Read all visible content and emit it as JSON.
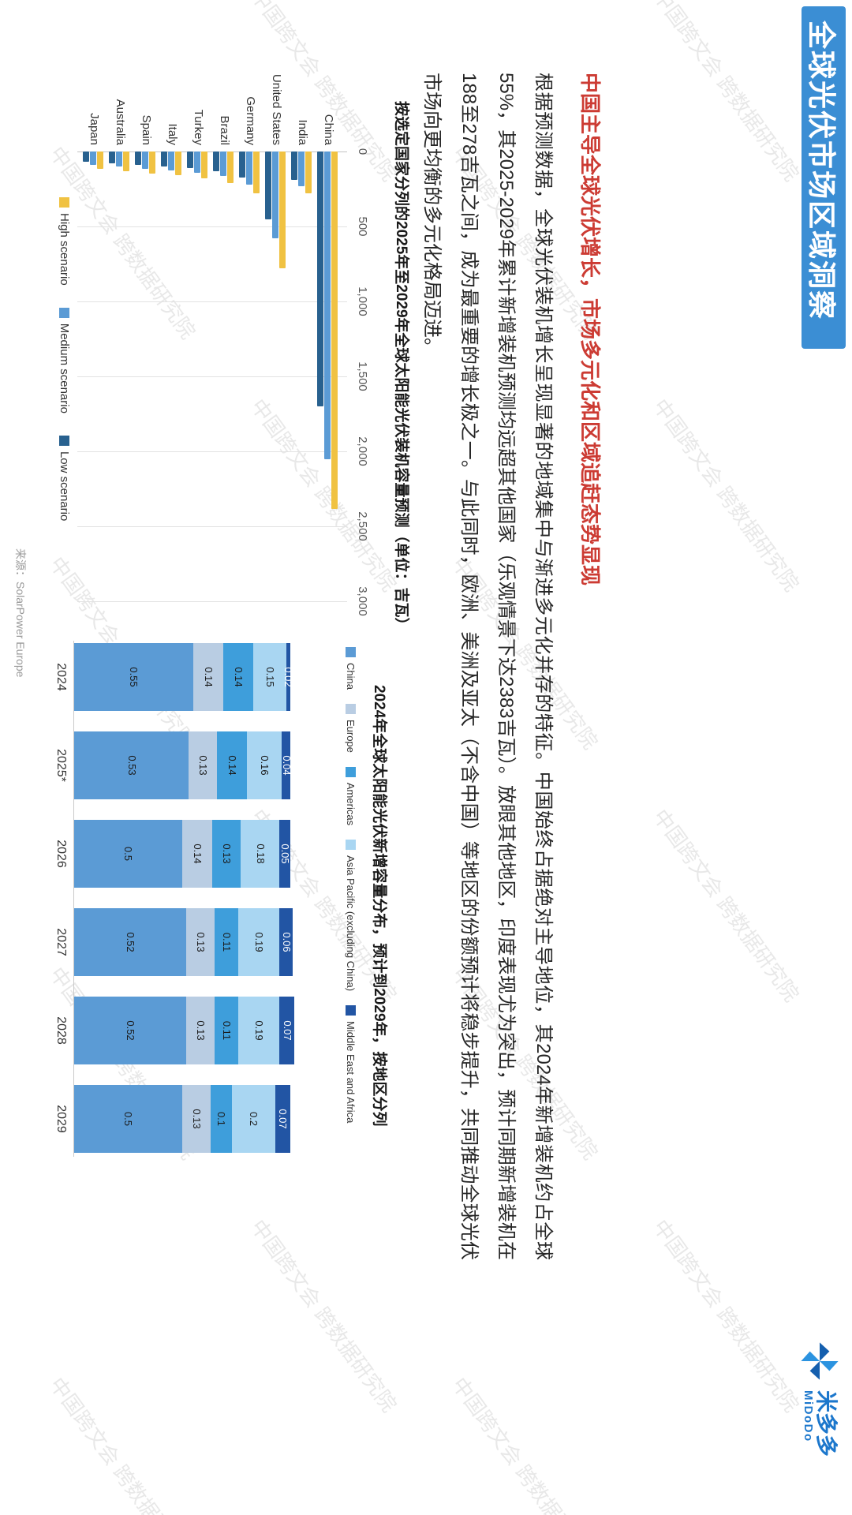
{
  "banner": {
    "title": "全球光伏市场区域洞察",
    "bg": "#3b8ed4"
  },
  "logo": {
    "zh": "米多多",
    "en": "MiDoDo",
    "color": "#1c77cc"
  },
  "heading": {
    "text": "中国主导全球光伏增长，市场多元化和区域追赶态势显现",
    "color": "#cc3b33"
  },
  "body_text": "根据预测数据，全球光伏装机增长呈现显著的地域集中与渐进多元化并存的特征。中国始终占据绝对主导地位，其2024年新增装机约占全球55%，其2025-2029年累计新增装机预测均远超其他国家（乐观情景下达2383吉瓦）。放眼其他地区，印度表现尤为突出，预计同期新增装机在188至278吉瓦之间，成为最重要的增长极之一。与此同时，欧洲、美洲及亚太（不含中国）等地区的份额预计将稳步提升，共同推动全球光伏市场向更均衡的多元化格局迈进。",
  "source": "来源：SolarPower Europe",
  "watermark": "中国跨文会 跨数据研究院",
  "chart_data": [
    {
      "type": "bar",
      "orientation": "horizontal",
      "title": "按选定国家分列的2025年至2029年全球太阳能光伏装机容量预测（单位：吉瓦）",
      "categories": [
        "China",
        "India",
        "United States",
        "Germany",
        "Brazil",
        "Turkey",
        "Italy",
        "Spain",
        "Australia",
        "Japan"
      ],
      "series": [
        {
          "name": "High scenario",
          "color": "#f0c242",
          "values": [
            2383,
            278,
            780,
            280,
            210,
            180,
            160,
            145,
            130,
            115
          ]
        },
        {
          "name": "Medium scenario",
          "color": "#5b9bd5",
          "values": [
            2050,
            230,
            580,
            220,
            165,
            140,
            125,
            115,
            100,
            90
          ]
        },
        {
          "name": "Low scenario",
          "color": "#28618f",
          "values": [
            1700,
            188,
            450,
            175,
            130,
            110,
            100,
            90,
            80,
            70
          ]
        }
      ],
      "xlim": [
        0,
        3000
      ],
      "ticks": [
        0,
        500,
        1000,
        1500,
        2000,
        2500,
        3000
      ],
      "tick_labels": [
        "0",
        "500",
        "1,000",
        "1,500",
        "2,000",
        "2,500",
        "3,000"
      ],
      "grid": true,
      "legend_position": "bottom",
      "note": "values are cumulative 2025-2029 additions in GW, estimated from bar lengths; China high scenario 2383 GW and India range 188-278 GW confirmed in body text"
    },
    {
      "type": "bar",
      "subtype": "stacked-column",
      "title": "2024年全球太阳能光伏新增容量分布，预计到2029年，按地区分列",
      "categories": [
        "2024",
        "2025*",
        "2026",
        "2027",
        "2028",
        "2029"
      ],
      "series": [
        {
          "name": "China",
          "color": "#5b9bd5",
          "values": [
            0.55,
            0.53,
            0.5,
            0.52,
            0.52,
            0.5
          ]
        },
        {
          "name": "Europe",
          "color": "#b9cde3",
          "values": [
            0.14,
            0.13,
            0.14,
            0.13,
            0.13,
            0.13
          ]
        },
        {
          "name": "Americas",
          "color": "#3e9edb",
          "values": [
            0.14,
            0.14,
            0.13,
            0.11,
            0.11,
            0.1
          ]
        },
        {
          "name": "Asia Pacific (excluding China)",
          "color": "#a9d6f2",
          "values": [
            0.15,
            0.16,
            0.18,
            0.19,
            0.19,
            0.2
          ]
        },
        {
          "name": "Middle East and Africa",
          "color": "#2255a4",
          "values": [
            0.02,
            0.04,
            0.05,
            0.06,
            0.07,
            0.07
          ]
        }
      ],
      "ylim": [
        0,
        1
      ],
      "grid": false,
      "legend_position": "top"
    }
  ]
}
